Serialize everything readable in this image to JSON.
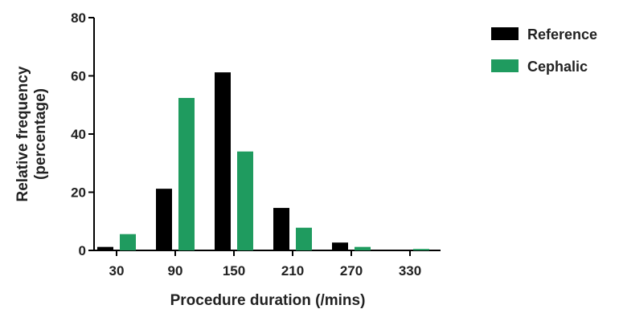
{
  "chart_data": {
    "type": "bar",
    "categories": [
      "30",
      "90",
      "150",
      "210",
      "270",
      "330"
    ],
    "series": [
      {
        "name": "Reference",
        "color": "#000000",
        "values": [
          1.2,
          21.2,
          61.2,
          14.6,
          2.7,
          0
        ]
      },
      {
        "name": "Cephalic",
        "color": "#1f9b5f",
        "values": [
          5.6,
          52.4,
          34.0,
          7.8,
          1.2,
          0.5
        ]
      }
    ],
    "title": "",
    "xlabel": "Procedure duration (/mins)",
    "ylabel_line1": "Relative frequency",
    "ylabel_line2": "(percentage)",
    "ylim": [
      0,
      80
    ],
    "yticks": [
      "0",
      "20",
      "40",
      "60",
      "80"
    ],
    "grid": false,
    "legend_position": "top-right"
  }
}
